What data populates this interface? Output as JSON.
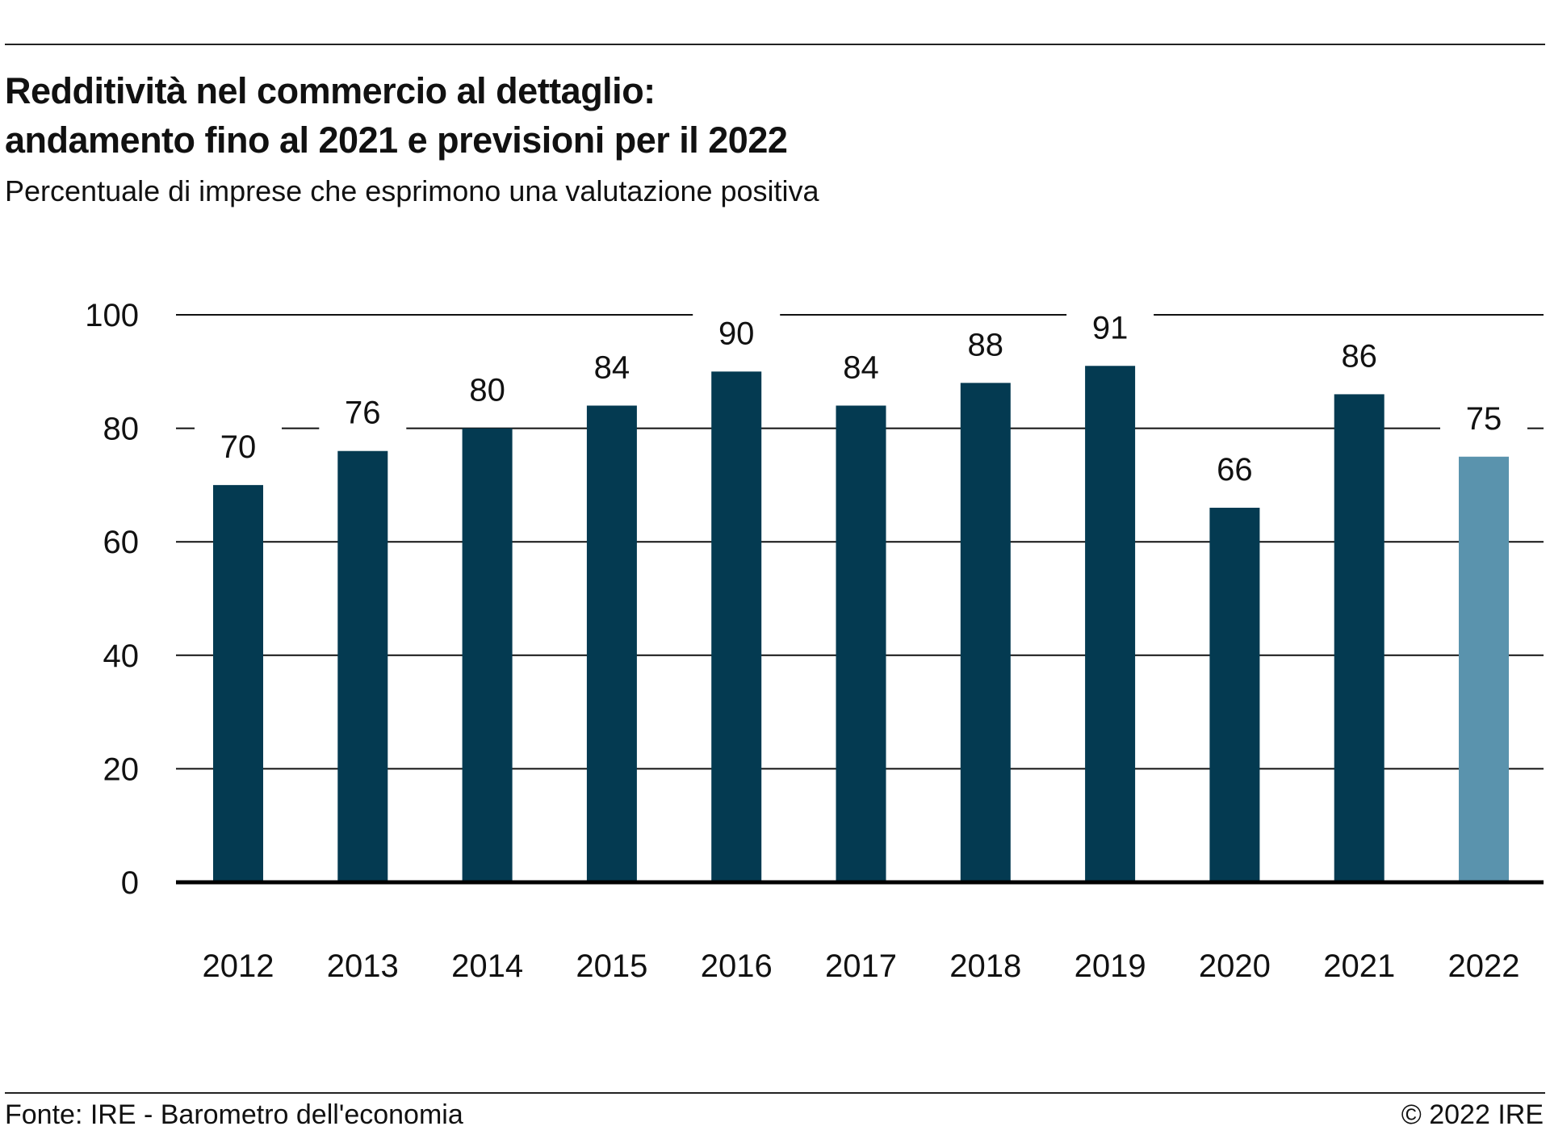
{
  "header": {
    "title_line1": "Redditività nel commercio al dettaglio:",
    "title_line2": "andamento fino al 2021 e previsioni per il 2022",
    "subtitle": "Percentuale di imprese che esprimono una valutazione positiva"
  },
  "footer": {
    "source": "Fonte: IRE - Barometro dell'economia",
    "copyright": "© 2022 IRE"
  },
  "colors": {
    "bar_actual": "#043a51",
    "bar_forecast": "#5a93ad",
    "grid": "#111111"
  },
  "chart_data": {
    "type": "bar",
    "categories": [
      "2012",
      "2013",
      "2014",
      "2015",
      "2016",
      "2017",
      "2018",
      "2019",
      "2020",
      "2021",
      "2022"
    ],
    "values": [
      70,
      76,
      80,
      84,
      90,
      84,
      88,
      91,
      66,
      86,
      75
    ],
    "forecast": [
      false,
      false,
      false,
      false,
      false,
      false,
      false,
      false,
      false,
      false,
      true
    ],
    "ylim": [
      0,
      100
    ],
    "yticks": [
      0,
      20,
      40,
      60,
      80,
      100
    ],
    "grid": true,
    "data_labels": true
  }
}
